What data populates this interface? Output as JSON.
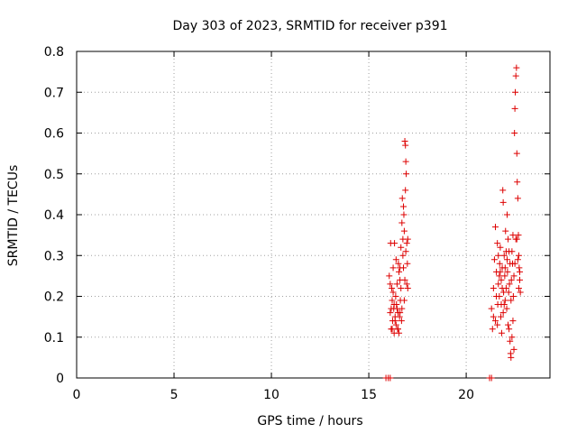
{
  "chart_data": {
    "type": "scatter",
    "title": "Day 303 of 2023, SRMTID for receiver p391",
    "xlabel": "GPS time / hours",
    "ylabel": "SRMTID / TECUs",
    "xlim": [
      0,
      24.3
    ],
    "ylim": [
      0,
      0.8
    ],
    "x_ticks": [
      0,
      5,
      10,
      15,
      20
    ],
    "y_ticks": [
      0,
      0.1,
      0.2,
      0.3,
      0.4,
      0.5,
      0.6,
      0.7,
      0.8
    ],
    "x_tick_labels": [
      "0",
      "5",
      "10",
      "15",
      "20"
    ],
    "y_tick_labels": [
      "0",
      "0.1",
      "0.2",
      "0.3",
      "0.4",
      "0.5",
      "0.6",
      "0.7",
      "0.8"
    ],
    "grid": true,
    "marker": "plus",
    "color": "#dd0000",
    "series": [
      {
        "points": [
          [
            15.88,
            0.0
          ],
          [
            16.0,
            0.0
          ],
          [
            16.1,
            0.0
          ],
          [
            21.2,
            0.0
          ],
          [
            21.3,
            0.0
          ],
          [
            16.05,
            0.25
          ],
          [
            16.1,
            0.16
          ],
          [
            16.12,
            0.33
          ],
          [
            16.15,
            0.12
          ],
          [
            16.18,
            0.22
          ],
          [
            16.2,
            0.19
          ],
          [
            16.22,
            0.14
          ],
          [
            16.25,
            0.27
          ],
          [
            16.28,
            0.17
          ],
          [
            16.3,
            0.11
          ],
          [
            16.32,
            0.33
          ],
          [
            16.35,
            0.15
          ],
          [
            16.38,
            0.2
          ],
          [
            16.4,
            0.13
          ],
          [
            16.42,
            0.18
          ],
          [
            16.45,
            0.23
          ],
          [
            16.48,
            0.12
          ],
          [
            16.5,
            0.16
          ],
          [
            16.52,
            0.28
          ],
          [
            16.55,
            0.11
          ],
          [
            16.58,
            0.15
          ],
          [
            16.6,
            0.24
          ],
          [
            16.62,
            0.19
          ],
          [
            16.65,
            0.32
          ],
          [
            16.68,
            0.14
          ],
          [
            16.7,
            0.38
          ],
          [
            16.72,
            0.44
          ],
          [
            16.75,
            0.3
          ],
          [
            16.78,
            0.42
          ],
          [
            16.8,
            0.4
          ],
          [
            16.82,
            0.36
          ],
          [
            16.85,
            0.24
          ],
          [
            16.88,
            0.57
          ],
          [
            16.9,
            0.53
          ],
          [
            16.92,
            0.5
          ],
          [
            16.95,
            0.33
          ],
          [
            16.98,
            0.28
          ],
          [
            17.0,
            0.22
          ],
          [
            16.6,
            0.16
          ],
          [
            16.55,
            0.26
          ],
          [
            16.45,
            0.17
          ],
          [
            16.35,
            0.14
          ],
          [
            16.25,
            0.21
          ],
          [
            16.15,
            0.17
          ],
          [
            16.1,
            0.23
          ],
          [
            16.7,
            0.17
          ],
          [
            16.82,
            0.19
          ],
          [
            16.9,
            0.31
          ],
          [
            16.95,
            0.23
          ],
          [
            17.0,
            0.34
          ],
          [
            16.4,
            0.29
          ],
          [
            16.5,
            0.12
          ],
          [
            16.65,
            0.22
          ],
          [
            16.78,
            0.27
          ],
          [
            16.88,
            0.46
          ],
          [
            16.3,
            0.18
          ],
          [
            16.2,
            0.12
          ],
          [
            16.85,
            0.58
          ],
          [
            16.75,
            0.34
          ],
          [
            16.6,
            0.27
          ],
          [
            21.3,
            0.17
          ],
          [
            21.35,
            0.12
          ],
          [
            21.4,
            0.22
          ],
          [
            21.45,
            0.29
          ],
          [
            21.5,
            0.14
          ],
          [
            21.55,
            0.26
          ],
          [
            21.6,
            0.33
          ],
          [
            21.62,
            0.18
          ],
          [
            21.65,
            0.23
          ],
          [
            21.7,
            0.2
          ],
          [
            21.72,
            0.28
          ],
          [
            21.75,
            0.32
          ],
          [
            21.78,
            0.15
          ],
          [
            21.8,
            0.24
          ],
          [
            21.82,
            0.11
          ],
          [
            21.85,
            0.27
          ],
          [
            21.88,
            0.46
          ],
          [
            21.9,
            0.43
          ],
          [
            21.92,
            0.21
          ],
          [
            21.95,
            0.3
          ],
          [
            21.98,
            0.25
          ],
          [
            22.0,
            0.19
          ],
          [
            22.02,
            0.36
          ],
          [
            22.05,
            0.22
          ],
          [
            22.08,
            0.17
          ],
          [
            22.1,
            0.29
          ],
          [
            22.12,
            0.26
          ],
          [
            22.15,
            0.34
          ],
          [
            22.18,
            0.21
          ],
          [
            22.2,
            0.12
          ],
          [
            22.22,
            0.23
          ],
          [
            22.25,
            0.09
          ],
          [
            22.28,
            0.06
          ],
          [
            22.3,
            0.05
          ],
          [
            22.32,
            0.24
          ],
          [
            22.35,
            0.31
          ],
          [
            22.38,
            0.28
          ],
          [
            22.4,
            0.35
          ],
          [
            22.42,
            0.2
          ],
          [
            22.45,
            0.25
          ],
          [
            22.48,
            0.6
          ],
          [
            22.5,
            0.66
          ],
          [
            22.52,
            0.7
          ],
          [
            22.55,
            0.74
          ],
          [
            22.58,
            0.76
          ],
          [
            22.6,
            0.55
          ],
          [
            22.62,
            0.48
          ],
          [
            22.65,
            0.44
          ],
          [
            22.68,
            0.35
          ],
          [
            22.7,
            0.3
          ],
          [
            22.72,
            0.27
          ],
          [
            22.75,
            0.24
          ],
          [
            22.78,
            0.21
          ],
          [
            21.5,
            0.37
          ],
          [
            21.6,
            0.13
          ],
          [
            21.7,
            0.25
          ],
          [
            21.8,
            0.18
          ],
          [
            21.9,
            0.16
          ],
          [
            22.0,
            0.27
          ],
          [
            22.1,
            0.4
          ],
          [
            22.2,
            0.31
          ],
          [
            22.3,
            0.19
          ],
          [
            22.4,
            0.14
          ],
          [
            22.5,
            0.28
          ],
          [
            22.6,
            0.34
          ],
          [
            22.7,
            0.22
          ],
          [
            21.4,
            0.15
          ],
          [
            21.55,
            0.2
          ],
          [
            21.65,
            0.3
          ],
          [
            21.75,
            0.26
          ],
          [
            21.85,
            0.22
          ],
          [
            21.95,
            0.18
          ],
          [
            22.05,
            0.31
          ],
          [
            22.15,
            0.13
          ],
          [
            22.25,
            0.28
          ],
          [
            22.35,
            0.1
          ],
          [
            22.45,
            0.07
          ],
          [
            22.55,
            0.34
          ],
          [
            22.65,
            0.29
          ],
          [
            22.75,
            0.26
          ]
        ]
      }
    ]
  }
}
